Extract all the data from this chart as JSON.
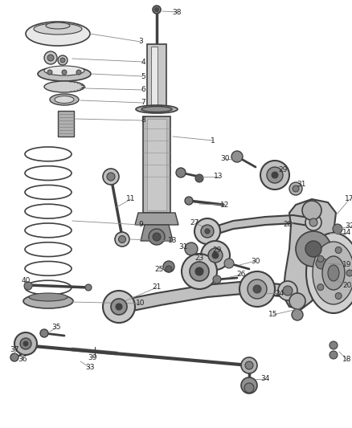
{
  "bg_color": "#ffffff",
  "line_color": "#404040",
  "dark_gray": "#303030",
  "mid_gray": "#808080",
  "light_gray": "#c8c8c8",
  "very_light": "#e8e8e8",
  "label_color": "#222222",
  "leader_color": "#888888"
}
